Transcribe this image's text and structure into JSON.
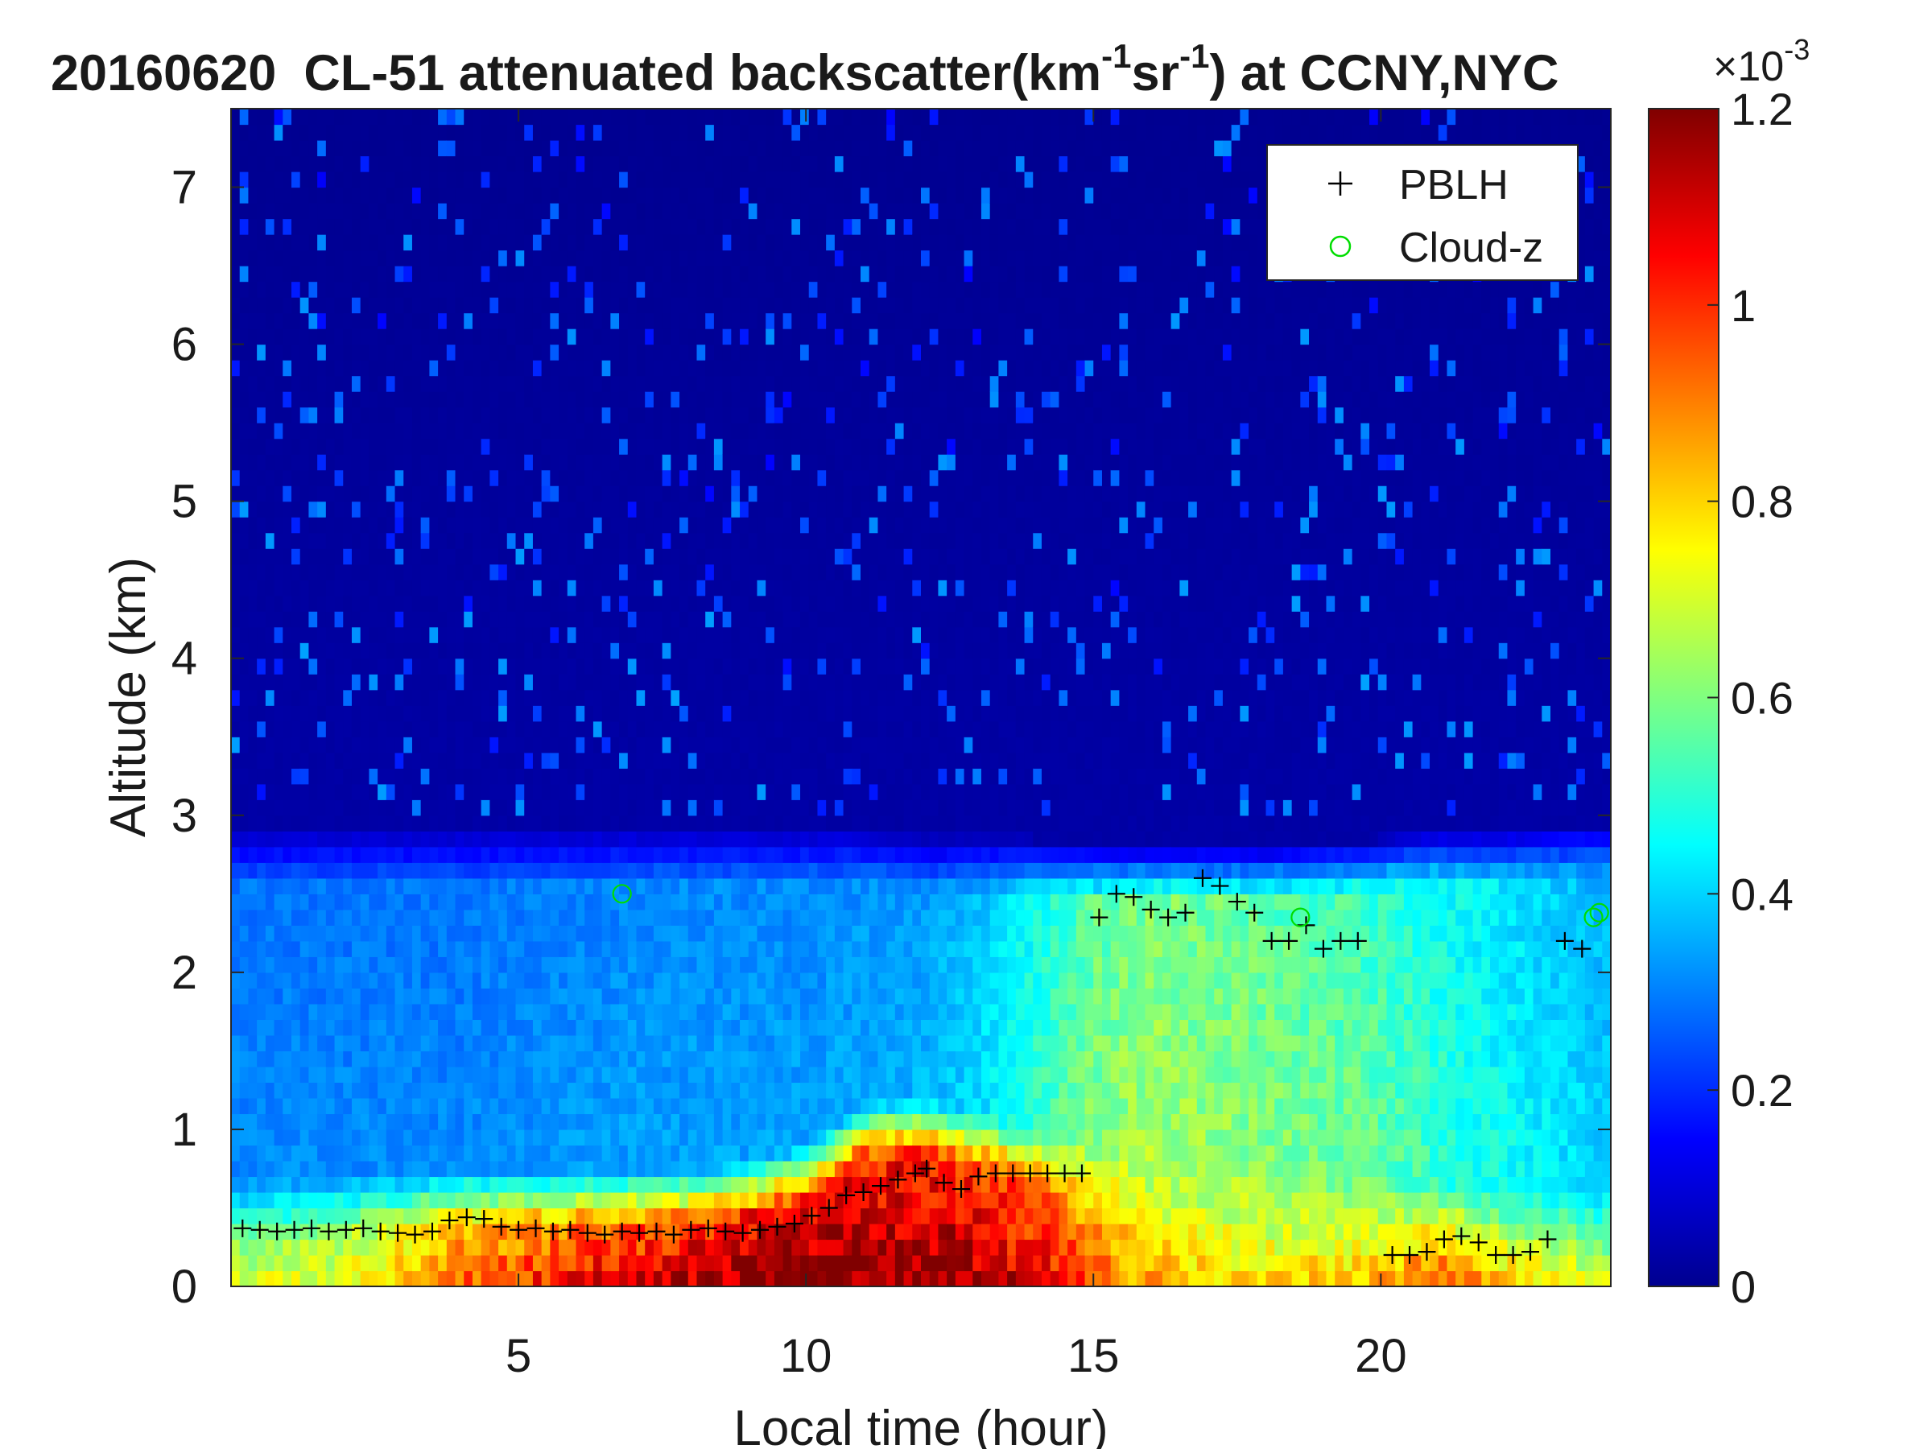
{
  "chart_data": {
    "type": "heatmap",
    "title": {
      "date": "20160620",
      "prefix": "CL-51 attenuated backscatter(km",
      "exp1": "-1",
      "mid": "sr",
      "exp2": "-1",
      "suffix": ") at CCNY,NYC"
    },
    "xlabel": "Local time (hour)",
    "ylabel": "Altitude (km)",
    "xlim": [
      0,
      24
    ],
    "ylim": [
      0,
      7.5
    ],
    "xticks": [
      5,
      10,
      15,
      20
    ],
    "yticks": [
      0,
      1,
      2,
      3,
      4,
      5,
      6,
      7
    ],
    "colorbar": {
      "min": 0,
      "max": 1.2,
      "ticks": [
        "0",
        "0.2",
        "0.4",
        "0.6",
        "0.8",
        "1",
        "1.2"
      ],
      "exponent_label": "×10",
      "exponent_power": "-3",
      "colormap": "jet"
    },
    "legend": {
      "placement": "top-right",
      "entries": [
        {
          "name": "PBLH",
          "marker": "+",
          "color": "#000000"
        },
        {
          "name": "Cloud-z",
          "marker": "o",
          "color": "#00dd00"
        }
      ]
    },
    "pblh": {
      "x": [
        0.2,
        0.5,
        0.8,
        1.1,
        1.4,
        1.7,
        2.0,
        2.3,
        2.6,
        2.9,
        3.2,
        3.5,
        3.8,
        4.1,
        4.4,
        4.7,
        5.0,
        5.3,
        5.6,
        5.9,
        6.2,
        6.5,
        6.8,
        7.1,
        7.4,
        7.7,
        8.0,
        8.3,
        8.6,
        8.9,
        9.2,
        9.5,
        9.8,
        10.1,
        10.4,
        10.7,
        11.0,
        11.3,
        11.6,
        11.9,
        12.1,
        12.4,
        12.7,
        13.0,
        13.3,
        13.6,
        13.9,
        14.2,
        14.5,
        14.8,
        15.1,
        15.4,
        15.7,
        16.0,
        16.3,
        16.6,
        16.9,
        17.2,
        17.5,
        17.8,
        18.1,
        18.4,
        18.7,
        19.0,
        19.3,
        19.6,
        20.2,
        20.5,
        20.8,
        21.1,
        21.4,
        21.7,
        22.0,
        22.3,
        22.6,
        22.9,
        23.2,
        23.5
      ],
      "y": [
        0.37,
        0.36,
        0.35,
        0.36,
        0.37,
        0.35,
        0.36,
        0.37,
        0.35,
        0.34,
        0.33,
        0.35,
        0.42,
        0.44,
        0.43,
        0.38,
        0.36,
        0.37,
        0.35,
        0.36,
        0.34,
        0.33,
        0.35,
        0.34,
        0.35,
        0.33,
        0.36,
        0.37,
        0.35,
        0.34,
        0.36,
        0.38,
        0.4,
        0.45,
        0.5,
        0.58,
        0.6,
        0.64,
        0.68,
        0.72,
        0.75,
        0.66,
        0.62,
        0.7,
        0.72,
        0.72,
        0.72,
        0.72,
        0.72,
        0.72,
        2.35,
        2.5,
        2.48,
        2.4,
        2.35,
        2.38,
        2.6,
        2.55,
        2.45,
        2.38,
        2.2,
        2.2,
        2.3,
        2.15,
        2.2,
        2.2,
        0.2,
        0.2,
        0.22,
        0.3,
        0.32,
        0.28,
        0.2,
        0.2,
        0.22,
        0.3,
        2.2,
        2.15
      ]
    },
    "cloud_z": {
      "x": [
        6.8,
        18.6,
        23.7,
        23.8
      ],
      "y": [
        2.5,
        2.35,
        2.35,
        2.38
      ]
    },
    "backscatter_profile": {
      "hours": [
        0,
        2,
        4,
        6,
        8,
        9,
        10,
        11,
        12,
        13,
        14,
        15,
        16,
        18,
        20,
        21,
        22,
        24
      ],
      "surface_layer_top_km": [
        0.3,
        0.35,
        0.4,
        0.4,
        0.4,
        0.45,
        0.55,
        0.8,
        0.85,
        0.75,
        0.65,
        0.55,
        0.45,
        0.4,
        0.3,
        0.3,
        0.25,
        0.25
      ],
      "surface_peak_1e3": [
        0.7,
        0.75,
        0.95,
        1.05,
        1.15,
        1.2,
        1.2,
        1.2,
        1.2,
        1.15,
        1.1,
        0.95,
        0.85,
        0.8,
        0.85,
        0.95,
        0.85,
        0.7
      ],
      "residual_layer_top_km": [
        2.75,
        2.75,
        2.75,
        2.75,
        2.75,
        2.75,
        2.75,
        2.75,
        2.7,
        2.7,
        2.7,
        2.65,
        2.65,
        2.65,
        2.7,
        2.75,
        2.75,
        2.8
      ],
      "residual_layer_1e3": [
        0.32,
        0.32,
        0.32,
        0.34,
        0.35,
        0.35,
        0.35,
        0.36,
        0.37,
        0.42,
        0.52,
        0.62,
        0.66,
        0.62,
        0.58,
        0.52,
        0.48,
        0.4
      ]
    }
  }
}
